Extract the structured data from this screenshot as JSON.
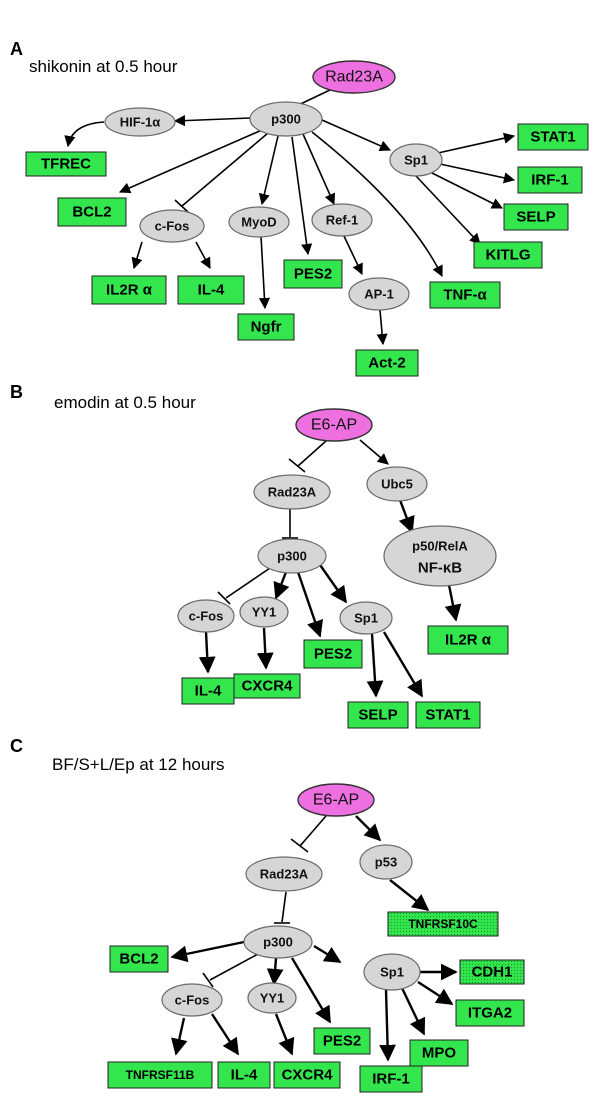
{
  "panels": [
    {
      "id": "A",
      "letter": "A",
      "title": "shikonin at 0.5 hour",
      "nodes": {
        "rad23a": "Rad23A",
        "p300": "p300",
        "hif1a": "HIF-1α",
        "sp1": "Sp1",
        "cfos": "c-Fos",
        "myod": "MyoD",
        "ref1": "Ref-1",
        "ap1": "AP-1",
        "tfrec": "TFREC",
        "bcl2": "BCL2",
        "il2ra": "IL2R α",
        "il4": "IL-4",
        "ngfr": "Ngfr",
        "pes2": "PES2",
        "act2": "Act-2",
        "tnfa": "TNF-α",
        "stat1": "STAT1",
        "irf1": "IRF-1",
        "selp": "SELP",
        "kitlg": "KITLG"
      }
    },
    {
      "id": "B",
      "letter": "B",
      "title": "emodin at 0.5 hour",
      "nodes": {
        "e6ap": "E6-AP",
        "rad23a": "Rad23A",
        "ubc5": "Ubc5",
        "p300": "p300",
        "nfkb_1": "p50/RelA",
        "nfkb_2": "NF-κB",
        "cfos": "c-Fos",
        "yy1": "YY1",
        "sp1": "Sp1",
        "il4": "IL-4",
        "cxcr4": "CXCR4",
        "pes2": "PES2",
        "selp": "SELP",
        "stat1": "STAT1",
        "il2ra": "IL2R α"
      }
    },
    {
      "id": "C",
      "letter": "C",
      "title": "BF/S+L/Ep at 12 hours",
      "nodes": {
        "e6ap": "E6-AP",
        "rad23a": "Rad23A",
        "p53": "p53",
        "tnfrsf10c": "TNFRSF10C",
        "p300": "p300",
        "bcl2": "BCL2",
        "sp1": "Sp1",
        "cfos": "c-Fos",
        "yy1": "YY1",
        "pes2": "PES2",
        "cdh1": "CDH1",
        "itga2": "ITGA2",
        "mpo": "MPO",
        "irf1": "IRF-1",
        "tnfrsf11b": "TNFRSF11B",
        "il4": "IL-4",
        "cxcr4": "CXCR4"
      }
    }
  ]
}
